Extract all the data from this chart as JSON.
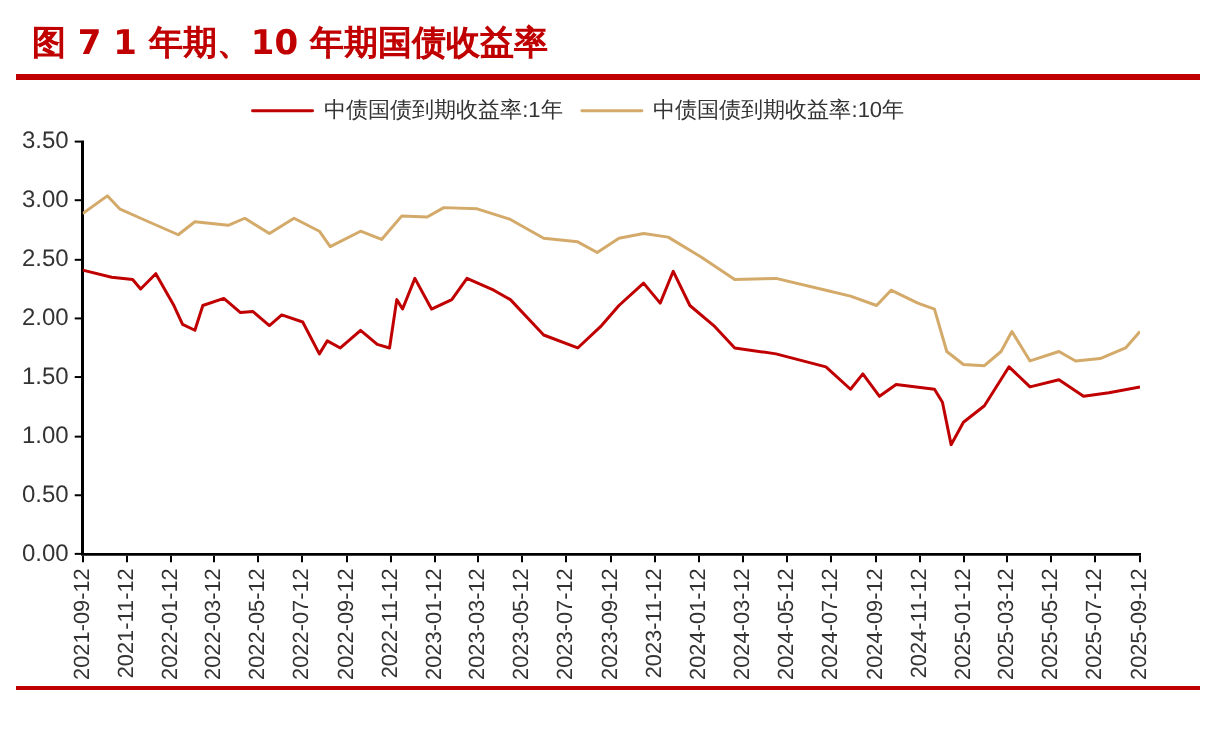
{
  "chart_data": {
    "type": "line",
    "title": "图 7 1 年期、10 年期国债收益率",
    "ylim": [
      0,
      3.5
    ],
    "yticks": [
      {
        "value": 0,
        "label": "0.00"
      },
      {
        "value": 0.5,
        "label": "0.50"
      },
      {
        "value": 1,
        "label": "1.00"
      },
      {
        "value": 1.5,
        "label": "1.50"
      },
      {
        "value": 2,
        "label": "2.00"
      },
      {
        "value": 2.5,
        "label": "2.50"
      },
      {
        "value": 3,
        "label": "3.00"
      },
      {
        "value": 3.5,
        "label": "3.50"
      }
    ],
    "xlim": [
      "2021-09-12",
      "2025-09-12"
    ],
    "xticks": [
      "2021-09-12",
      "2021-11-12",
      "2022-01-12",
      "2022-03-12",
      "2022-05-12",
      "2022-07-12",
      "2022-09-12",
      "2022-11-12",
      "2023-01-12",
      "2023-03-12",
      "2023-05-12",
      "2023-07-12",
      "2023-09-12",
      "2023-11-12",
      "2024-01-12",
      "2024-03-12",
      "2024-05-12",
      "2024-07-12",
      "2024-09-12",
      "2024-11-12",
      "2025-01-12",
      "2025-03-12",
      "2025-05-12",
      "2025-07-12",
      "2025-09-12"
    ],
    "legend": "top",
    "marker": "none",
    "line_style": "solid",
    "series": [
      {
        "name": "中债国债到期收益率:1年",
        "color": "#c00000",
        "x": [
          "2021-09-12",
          "2021-10-22",
          "2021-11-20",
          "2021-12-01",
          "2021-12-22",
          "2022-01-16",
          "2022-01-28",
          "2022-02-14",
          "2022-02-25",
          "2022-03-26",
          "2022-04-18",
          "2022-05-05",
          "2022-05-28",
          "2022-06-14",
          "2022-07-13",
          "2022-08-05",
          "2022-08-16",
          "2022-09-03",
          "2022-10-01",
          "2022-10-24",
          "2022-11-10",
          "2022-11-20",
          "2022-11-28",
          "2022-12-15",
          "2023-01-07",
          "2023-02-04",
          "2023-02-25",
          "2023-04-03",
          "2023-04-26",
          "2023-06-11",
          "2023-07-28",
          "2023-08-30",
          "2023-09-23",
          "2023-10-27",
          "2023-11-19",
          "2023-12-07",
          "2023-12-30",
          "2024-02-01",
          "2024-03-01",
          "2024-04-27",
          "2024-07-05",
          "2024-08-08",
          "2024-08-25",
          "2024-09-17",
          "2024-10-10",
          "2024-12-02",
          "2024-12-13",
          "2024-12-25",
          "2025-01-11",
          "2025-02-09",
          "2025-03-15",
          "2025-04-13",
          "2025-05-23",
          "2025-06-26",
          "2025-07-31",
          "2025-09-12"
        ],
        "values": [
          2.41,
          2.35,
          2.33,
          2.25,
          2.38,
          2.11,
          1.95,
          1.9,
          2.11,
          2.17,
          2.05,
          2.06,
          1.94,
          2.03,
          1.97,
          1.7,
          1.81,
          1.75,
          1.9,
          1.78,
          1.75,
          2.16,
          2.08,
          2.34,
          2.08,
          2.16,
          2.34,
          2.24,
          2.16,
          1.86,
          1.75,
          1.94,
          2.11,
          2.3,
          2.13,
          2.4,
          2.11,
          1.94,
          1.75,
          1.7,
          1.59,
          1.4,
          1.53,
          1.34,
          1.44,
          1.4,
          1.29,
          0.93,
          1.12,
          1.26,
          1.59,
          1.42,
          1.48,
          1.34,
          1.37,
          1.42
        ]
      },
      {
        "name": "中债国债到期收益率:10年",
        "color": "#d4aa6a",
        "x": [
          "2021-09-12",
          "2021-10-16",
          "2021-11-02",
          "2021-12-01",
          "2022-01-22",
          "2022-02-14",
          "2022-04-01",
          "2022-04-24",
          "2022-05-28",
          "2022-07-01",
          "2022-08-05",
          "2022-08-20",
          "2022-10-01",
          "2022-10-30",
          "2022-11-27",
          "2023-01-01",
          "2023-01-24",
          "2023-03-11",
          "2023-04-26",
          "2023-06-11",
          "2023-07-28",
          "2023-08-24",
          "2023-09-23",
          "2023-10-27",
          "2023-11-30",
          "2024-01-15",
          "2024-03-01",
          "2024-04-27",
          "2024-07-05",
          "2024-08-08",
          "2024-09-13",
          "2024-10-03",
          "2024-11-09",
          "2024-12-02",
          "2024-12-19",
          "2025-01-11",
          "2025-02-09",
          "2025-03-04",
          "2025-03-19",
          "2025-04-13",
          "2025-05-23",
          "2025-06-15",
          "2025-07-19",
          "2025-08-23",
          "2025-09-12"
        ],
        "values": [
          2.89,
          3.04,
          2.93,
          2.85,
          2.71,
          2.82,
          2.79,
          2.85,
          2.72,
          2.85,
          2.74,
          2.61,
          2.74,
          2.67,
          2.87,
          2.86,
          2.94,
          2.93,
          2.84,
          2.68,
          2.65,
          2.56,
          2.68,
          2.72,
          2.69,
          2.52,
          2.33,
          2.34,
          2.24,
          2.19,
          2.11,
          2.24,
          2.13,
          2.08,
          1.72,
          1.61,
          1.6,
          1.72,
          1.89,
          1.64,
          1.72,
          1.64,
          1.66,
          1.75,
          1.89
        ]
      }
    ]
  }
}
